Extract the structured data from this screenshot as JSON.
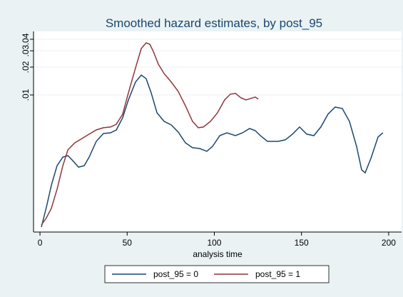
{
  "chart_data": {
    "type": "line",
    "title": "Smoothed hazard estimates, by post_95",
    "xlabel": "analysis time",
    "yscale": "log",
    "grid": true,
    "xlim": [
      -3.7,
      207.4
    ],
    "xticks": [
      0,
      50,
      100,
      150,
      200
    ],
    "ylim": [
      0.00033,
      0.0486
    ],
    "yticks": [
      {
        "value": 0.01,
        "label": ".01"
      },
      {
        "value": 0.02,
        "label": ".02"
      },
      {
        "value": 0.03,
        "label": ".03"
      },
      {
        "value": 0.04,
        "label": ".04"
      }
    ],
    "series": [
      {
        "name": "post_95 = 0",
        "color": "#1a476f",
        "x": [
          0.8,
          3.7,
          6.5,
          9.8,
          13.1,
          16.0,
          18.8,
          22.1,
          25.4,
          28.2,
          32.3,
          36.4,
          40.5,
          43.8,
          47.4,
          50.7,
          54.8,
          58.1,
          60.9,
          63.8,
          67.1,
          71.2,
          75.3,
          79.3,
          83.4,
          87.5,
          91.6,
          95.7,
          99.0,
          103.1,
          107.2,
          112.1,
          116.2,
          120.2,
          123.5,
          126.4,
          130.5,
          136.6,
          140.7,
          144.8,
          148.9,
          153.0,
          157.1,
          161.1,
          165.2,
          169.3,
          173.4,
          177.5,
          181.6,
          184.5,
          186.5,
          189.8,
          193.9,
          196.7
        ],
        "values": [
          0.000374,
          0.000615,
          0.00105,
          0.00172,
          0.00213,
          0.00221,
          0.00195,
          0.00166,
          0.00172,
          0.00213,
          0.00315,
          0.00383,
          0.0039,
          0.00419,
          0.00566,
          0.00883,
          0.0138,
          0.0164,
          0.015,
          0.0105,
          0.00641,
          0.00518,
          0.00474,
          0.00397,
          0.00304,
          0.00269,
          0.00264,
          0.00246,
          0.00278,
          0.00363,
          0.0039,
          0.00363,
          0.0039,
          0.00434,
          0.00411,
          0.00363,
          0.00315,
          0.00315,
          0.00327,
          0.00377,
          0.0045,
          0.00377,
          0.00363,
          0.0045,
          0.00619,
          0.00739,
          0.00713,
          0.00518,
          0.00278,
          0.00155,
          0.00144,
          0.00206,
          0.00351,
          0.0039
        ]
      },
      {
        "name": "post_95 = 1",
        "color": "#90353b",
        "x": [
          0.8,
          3.7,
          6.5,
          9.8,
          13.1,
          16.0,
          20.0,
          24.1,
          28.2,
          32.3,
          36.4,
          40.5,
          43.8,
          47.4,
          50.7,
          54.8,
          58.1,
          60.9,
          63.0,
          65.0,
          67.9,
          71.2,
          75.3,
          79.3,
          83.4,
          87.5,
          90.8,
          93.7,
          97.8,
          101.8,
          105.9,
          109.2,
          112.1,
          115.3,
          118.2,
          121.1,
          123.5,
          125.2
        ],
        "values": [
          0.000394,
          0.000471,
          0.000593,
          0.000957,
          0.00172,
          0.00255,
          0.00304,
          0.00338,
          0.00377,
          0.00419,
          0.00442,
          0.0045,
          0.00483,
          0.00619,
          0.0105,
          0.0196,
          0.0318,
          0.0366,
          0.0353,
          0.0296,
          0.0215,
          0.017,
          0.0138,
          0.0109,
          0.00766,
          0.00518,
          0.00442,
          0.0045,
          0.00518,
          0.00641,
          0.00883,
          0.0102,
          0.0104,
          0.0093,
          0.00883,
          0.0092,
          0.0095,
          0.009
        ]
      }
    ]
  }
}
